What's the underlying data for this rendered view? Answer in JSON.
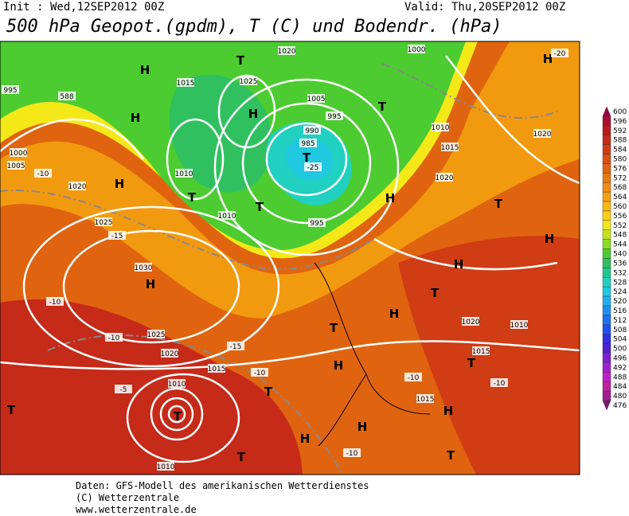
{
  "header": {
    "init": "Init : Wed,12SEP2012 00Z",
    "valid": "Valid: Thu,20SEP2012 00Z",
    "title": "500 hPa Geopot.(gpdm), T (C) und Bodendr. (hPa)"
  },
  "footer": {
    "lines": [
      "Daten: GFS-Modell des amerikanischen Wetterdienstes",
      "(C) Wetterzentrale",
      "www.wetterzentrale.de"
    ]
  },
  "legend": {
    "items": [
      {
        "value": 600,
        "color": "#9c0048"
      },
      {
        "value": 596,
        "color": "#ac1030"
      },
      {
        "value": 592,
        "color": "#bc1a1c"
      },
      {
        "value": 588,
        "color": "#c62a18"
      },
      {
        "value": 584,
        "color": "#d03c14"
      },
      {
        "value": 580,
        "color": "#d85010"
      },
      {
        "value": 576,
        "color": "#e06410"
      },
      {
        "value": 572,
        "color": "#e87810"
      },
      {
        "value": 568,
        "color": "#f08c10"
      },
      {
        "value": 564,
        "color": "#f4a010"
      },
      {
        "value": 560,
        "color": "#f8b810"
      },
      {
        "value": 556,
        "color": "#fcd010"
      },
      {
        "value": 552,
        "color": "#f4e818"
      },
      {
        "value": 548,
        "color": "#c4e418"
      },
      {
        "value": 544,
        "color": "#8cdc20"
      },
      {
        "value": 540,
        "color": "#4ccc30"
      },
      {
        "value": 536,
        "color": "#30c060"
      },
      {
        "value": 532,
        "color": "#20c890"
      },
      {
        "value": 528,
        "color": "#20d0c0"
      },
      {
        "value": 524,
        "color": "#20c8e0"
      },
      {
        "value": 520,
        "color": "#20b0f0"
      },
      {
        "value": 516,
        "color": "#2090f0"
      },
      {
        "value": 512,
        "color": "#2070f0"
      },
      {
        "value": 508,
        "color": "#2050f0"
      },
      {
        "value": 504,
        "color": "#3030e0"
      },
      {
        "value": 500,
        "color": "#5020d0"
      },
      {
        "value": 496,
        "color": "#8020d0"
      },
      {
        "value": 492,
        "color": "#a020d0"
      },
      {
        "value": 488,
        "color": "#c020c8"
      },
      {
        "value": 484,
        "color": "#c020a0"
      },
      {
        "value": 480,
        "color": "#a02090"
      },
      {
        "value": 476,
        "color": "#801870"
      }
    ]
  },
  "map_labels": [
    "H",
    "T",
    "1020",
    "1000",
    "H",
    "-20",
    "995",
    "588",
    "H",
    "1015",
    "1025",
    "H",
    "1005",
    "995",
    "T",
    "990",
    "985",
    "T",
    "-25",
    "1010",
    "1015",
    "1020",
    "1000",
    "1005",
    "-10",
    "1020",
    "H",
    "1010",
    "T",
    "T",
    "1010",
    "995",
    "1020",
    "T",
    "H",
    "1025",
    "-15",
    "1030",
    "H",
    "-10",
    "-10",
    "1025",
    "1020",
    "1015",
    "-15",
    "T",
    "H",
    "T",
    "-10",
    "H",
    "T",
    "1020",
    "1010",
    "T",
    "1015",
    "-10",
    "-10",
    "1015",
    "H",
    "-5",
    "1010",
    "T",
    "T",
    "H",
    "T",
    "H",
    "1010",
    "-10",
    "T",
    "H",
    "H"
  ]
}
